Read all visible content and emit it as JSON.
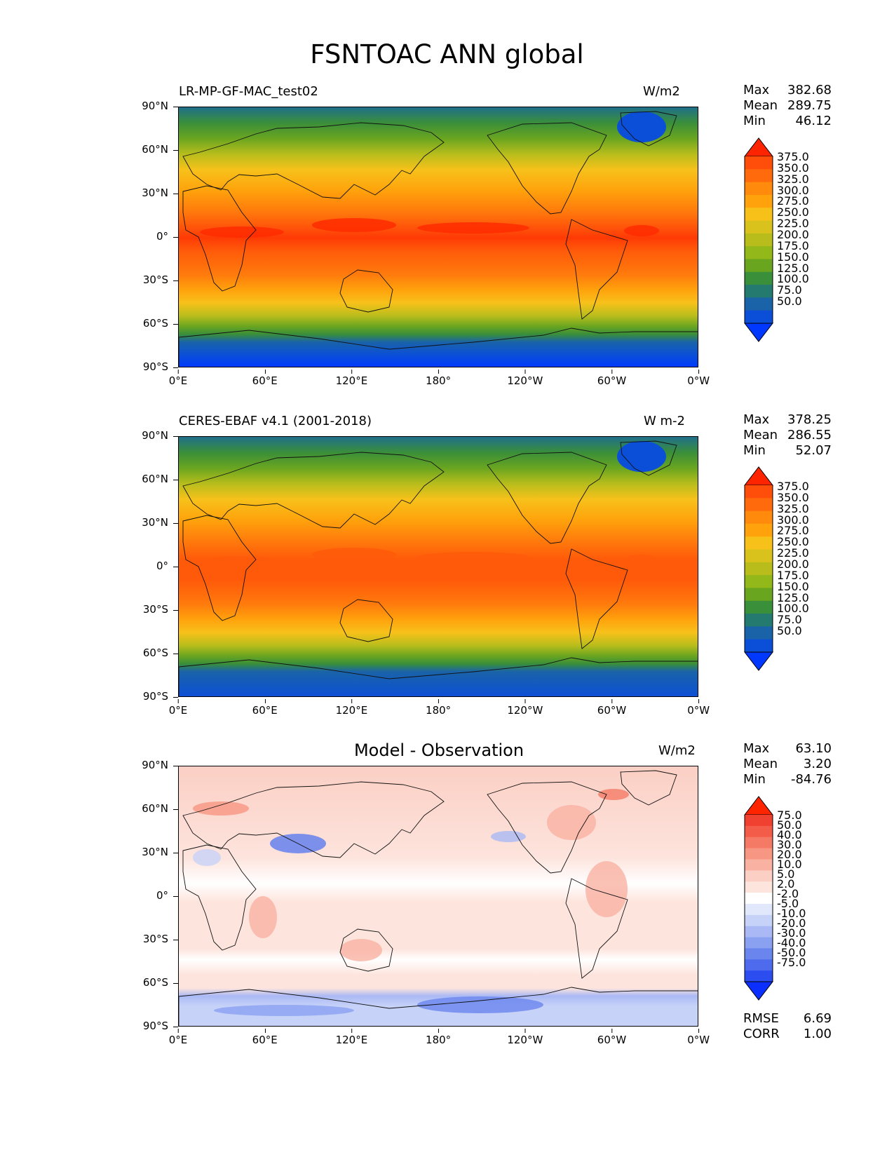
{
  "figure": {
    "title": "FSNTOAC ANN global"
  },
  "axes": {
    "lat_labels": [
      "90°N",
      "60°N",
      "30°N",
      "0°",
      "30°S",
      "60°S",
      "90°S"
    ],
    "lon_labels": [
      "0°E",
      "60°E",
      "120°E",
      "180°",
      "120°W",
      "60°W",
      "0°W"
    ]
  },
  "panels": [
    {
      "title": "LR-MP-GF-MAC_test02",
      "units": "W/m2",
      "stats": {
        "max_label": "Max",
        "max": "382.68",
        "mean_label": "Mean",
        "mean": "289.75",
        "min_label": "Min",
        "min": "46.12"
      },
      "colorbar": {
        "ticks": [
          "375.0",
          "350.0",
          "325.0",
          "300.0",
          "275.0",
          "250.0",
          "225.0",
          "200.0",
          "175.0",
          "150.0",
          "125.0",
          "100.0",
          "75.0",
          "50.0"
        ],
        "colors": [
          "#ff2400",
          "#ff4e0a",
          "#ff6a0c",
          "#ff8a0c",
          "#ffa20c",
          "#f7c11a",
          "#d9c21c",
          "#b8bd1c",
          "#93b81a",
          "#6aa520",
          "#3a8f3a",
          "#257a70",
          "#1a63a8",
          "#0b4fd8",
          "#0038ff"
        ]
      }
    },
    {
      "title": "CERES-EBAF v4.1 (2001-2018)",
      "units": "W m-2",
      "stats": {
        "max_label": "Max",
        "max": "378.25",
        "mean_label": "Mean",
        "mean": "286.55",
        "min_label": "Min",
        "min": "52.07"
      },
      "colorbar": {
        "ticks": [
          "375.0",
          "350.0",
          "325.0",
          "300.0",
          "275.0",
          "250.0",
          "225.0",
          "200.0",
          "175.0",
          "150.0",
          "125.0",
          "100.0",
          "75.0",
          "50.0"
        ],
        "colors": [
          "#ff2400",
          "#ff4e0a",
          "#ff6a0c",
          "#ff8a0c",
          "#ffa20c",
          "#f7c11a",
          "#d9c21c",
          "#b8bd1c",
          "#93b81a",
          "#6aa520",
          "#3a8f3a",
          "#257a70",
          "#1a63a8",
          "#0b4fd8",
          "#0038ff"
        ]
      }
    },
    {
      "title": "Model - Observation",
      "units": "W/m2",
      "stats": {
        "max_label": "Max",
        "max": "63.10",
        "mean_label": "Mean",
        "mean": "3.20",
        "min_label": "Min",
        "min": "-84.76"
      },
      "colorbar": {
        "ticks": [
          "75.0",
          "50.0",
          "40.0",
          "30.0",
          "20.0",
          "10.0",
          "5.0",
          "2.0",
          "-2.0",
          "-5.0",
          "-10.0",
          "-20.0",
          "-30.0",
          "-40.0",
          "-50.0",
          "-75.0"
        ],
        "colors": [
          "#ff2400",
          "#f04030",
          "#f45c4a",
          "#f57a66",
          "#f79682",
          "#f9b2a2",
          "#fbcfc4",
          "#fde4dd",
          "#ffffff",
          "#e2e8fb",
          "#c7d2f8",
          "#aab9f5",
          "#8aa1f1",
          "#6a86ee",
          "#4d6bec",
          "#2c4df0",
          "#0b2fff"
        ]
      },
      "summary": {
        "rmse_label": "RMSE",
        "rmse": "6.69",
        "corr_label": "CORR",
        "corr": "1.00"
      }
    }
  ]
}
